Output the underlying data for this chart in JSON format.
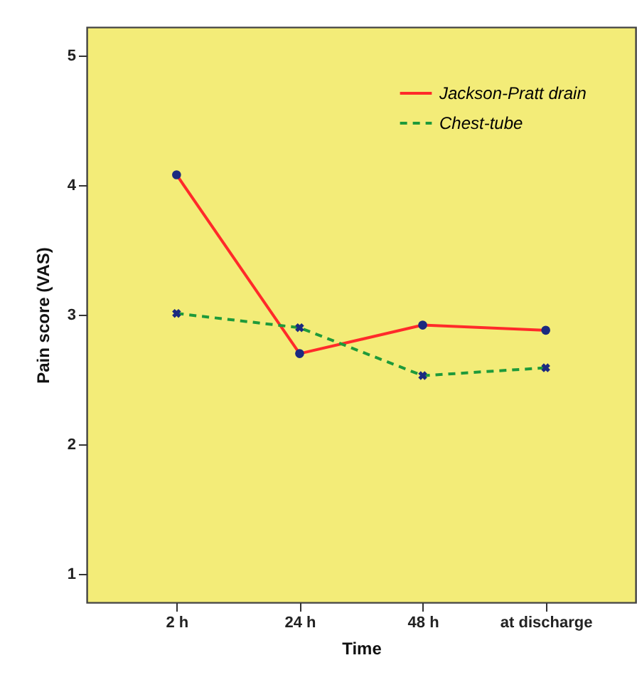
{
  "chart_data": {
    "type": "line",
    "xlabel": "Time",
    "ylabel": "Pain score (VAS)",
    "categories": [
      "2 h",
      "24 h",
      "48 h",
      "at discharge"
    ],
    "series": [
      {
        "name": "Jackson-Pratt drain",
        "color": "#ff2a2a",
        "line_style": "solid",
        "marker": "circle",
        "values": [
          4.08,
          2.7,
          2.92,
          2.88
        ]
      },
      {
        "name": "Chest-tube",
        "color": "#1e9a3a",
        "line_style": "dashed",
        "marker": "cross",
        "values": [
          3.01,
          2.9,
          2.53,
          2.59
        ]
      }
    ],
    "ylim": [
      0.78,
      5.22
    ],
    "yticks": [
      1,
      2,
      3,
      4,
      5
    ],
    "grid": false,
    "legend": "top right"
  }
}
